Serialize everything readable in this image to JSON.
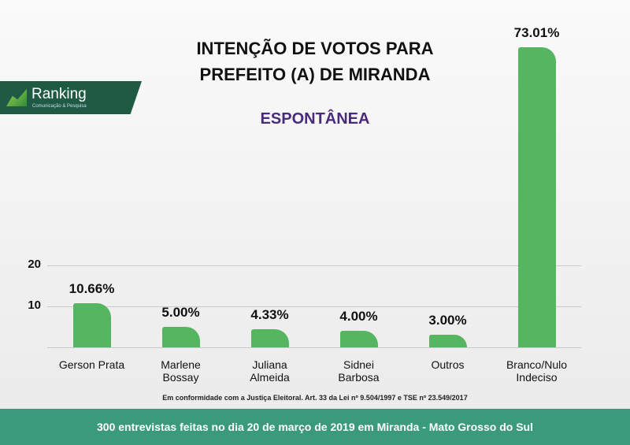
{
  "logo": {
    "name": "Ranking",
    "tagline": "Comunicação & Pesquisa"
  },
  "chart_data": {
    "type": "bar",
    "title": "INTENÇÃO DE VOTOS PARA PREFEITO (A) DE MIRANDA",
    "subtitle": "ESPONTÂNEA",
    "categories": [
      "Gerson Prata",
      "Marlene Bossay",
      "Juliana Almeida",
      "Sidnei Barbosa",
      "Outros",
      "Branco/Nulo Indeciso"
    ],
    "values": [
      10.66,
      5.0,
      4.33,
      4.0,
      3.0,
      73.01
    ],
    "value_labels": [
      "10.66%",
      "5.00%",
      "4.33%",
      "4.00%",
      "3.00%",
      "73.01%"
    ],
    "color": "#55b560",
    "ylim": [
      0,
      74
    ],
    "yticks": [
      10,
      20
    ],
    "grid": true,
    "note": "Em conformidade com a Justiça Eleitoral. Art. 33 da Lei nº 9.504/1997 e TSE nº 23.549/2017",
    "footer": "300 entrevistas feitas no dia 20 de março de 2019 em Miranda - Mato Grosso do Sul"
  }
}
